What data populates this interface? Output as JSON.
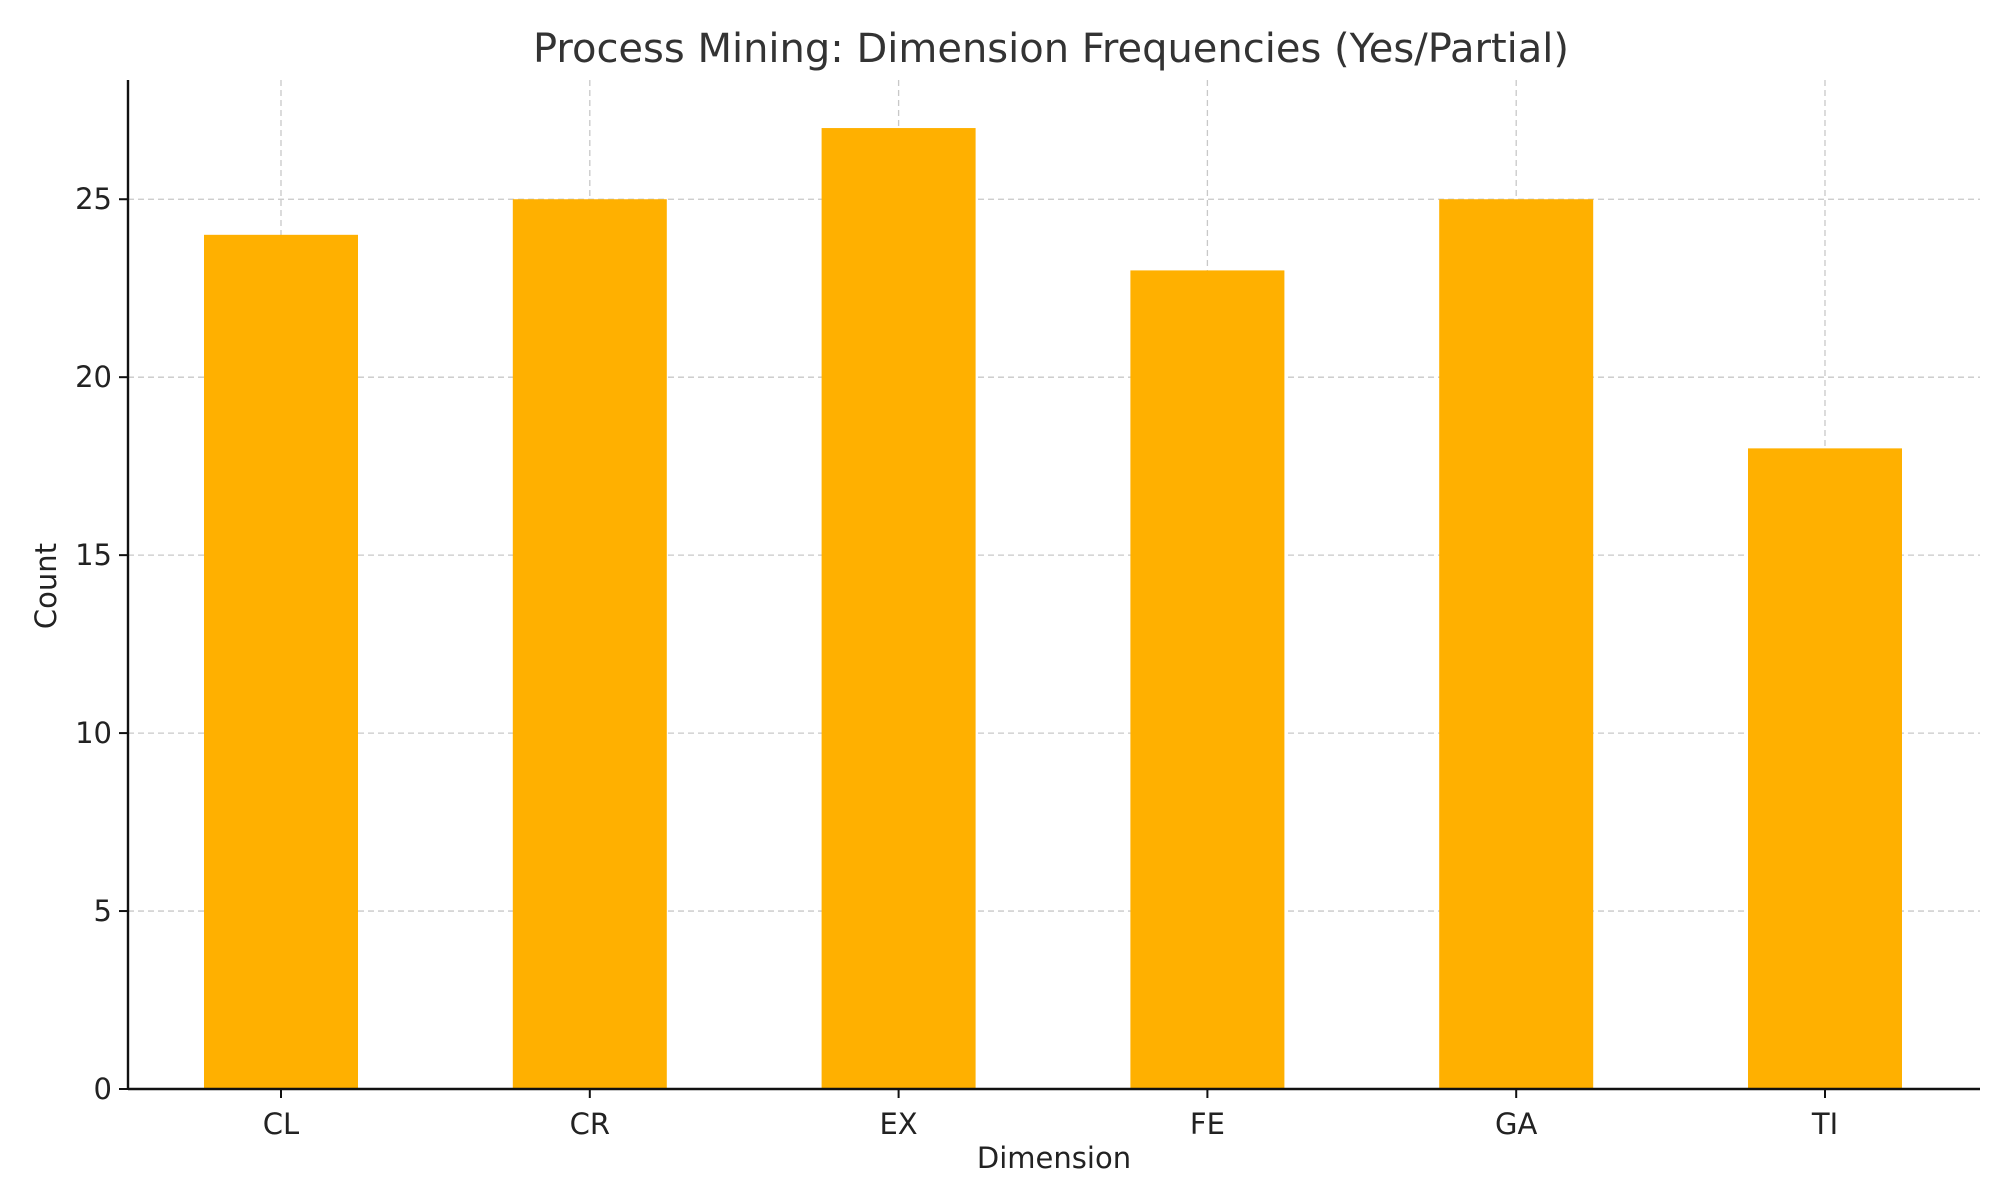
{
  "chart_data": {
    "type": "bar",
    "title": "Process Mining: Dimension Frequencies (Yes/Partial)",
    "xlabel": "Dimension",
    "ylabel": "Count",
    "categories": [
      "CL",
      "CR",
      "EX",
      "FE",
      "GA",
      "TI"
    ],
    "values": [
      24,
      25,
      27,
      23,
      25,
      18
    ],
    "ylim": [
      0,
      28.35
    ],
    "yticks": [
      0,
      5,
      10,
      15,
      20,
      25
    ],
    "grid": true,
    "bar_color": "#FFB000"
  }
}
